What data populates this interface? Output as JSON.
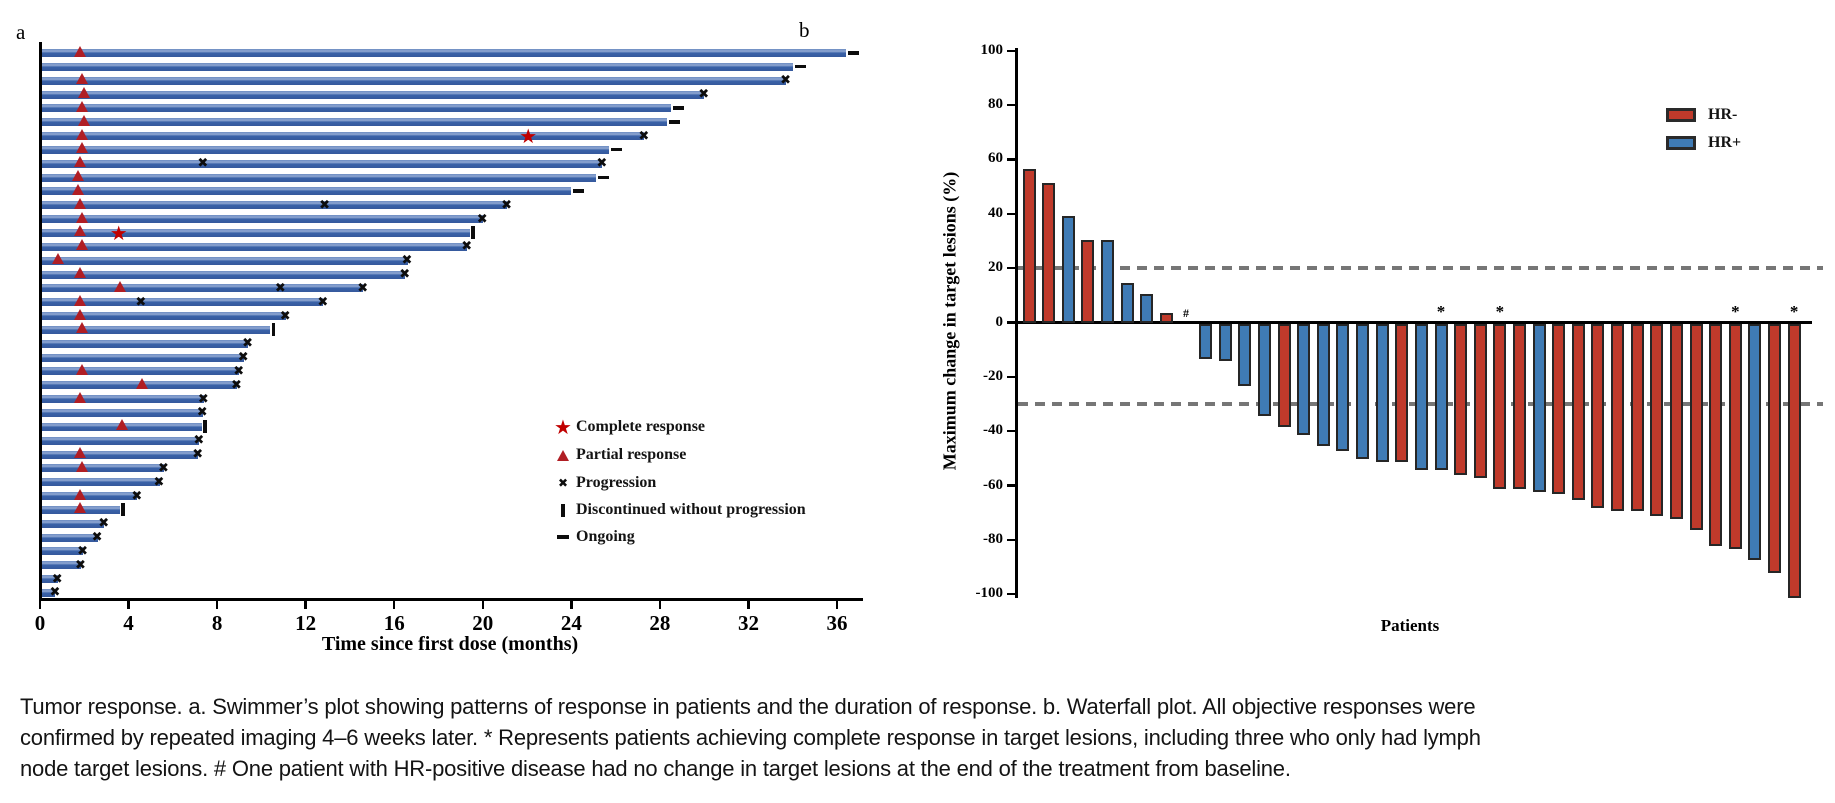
{
  "figure": {
    "panel_a_label": "a",
    "panel_b_label": "b"
  },
  "colors": {
    "swimmer_bar": "#3A62A8",
    "response_marker_red": "#B01E24",
    "complete_response_red": "#C00000",
    "progression_black": "#0D0D0D",
    "hr_negative_red": "#C03A2B",
    "hr_positive_blue": "#3F7BB5",
    "reference_dash_gray": "#767676",
    "axis_black": "#000000"
  },
  "caption": {
    "lines": [
      "Tumor response. a. Swimmer’s plot showing patterns of response in patients and the duration of response. b. Waterfall plot. All objective responses were",
      "confirmed by repeated imaging 4–6 weeks later. * Represents patients achieving complete response in target lesions, including three who only had lymph",
      "node target lesions. # One patient with HR-positive disease had no change in target lesions at the end of the treatment from baseline."
    ]
  },
  "chart_data": [
    {
      "type": "swimmer",
      "panel": "a",
      "xlabel": "Time since first dose (months)",
      "xticks": [
        0,
        4,
        8,
        12,
        16,
        20,
        24,
        28,
        32,
        36
      ],
      "xlim": [
        0,
        37.2
      ],
      "legend": [
        {
          "symbol": "star",
          "label": "Complete response"
        },
        {
          "symbol": "triangle",
          "label": "Partial response"
        },
        {
          "symbol": "x",
          "label": "Progression"
        },
        {
          "symbol": "vbar",
          "label": "Discontinued without progression"
        },
        {
          "symbol": "dash",
          "label": "Ongoing"
        }
      ],
      "end_types": {
        "ongoing": "dash beyond bar",
        "progression": "x at bar end",
        "discontinued": "vertical bar at end"
      },
      "patients": [
        {
          "duration": 36.4,
          "end": "ongoing",
          "partial_response": [
            1.8
          ]
        },
        {
          "duration": 34.0,
          "end": "ongoing"
        },
        {
          "duration": 33.7,
          "end": "progression",
          "partial_response": [
            1.9
          ]
        },
        {
          "duration": 30.0,
          "end": "progression",
          "partial_response": [
            2.0
          ]
        },
        {
          "duration": 28.5,
          "end": "ongoing",
          "partial_response": [
            1.9
          ]
        },
        {
          "duration": 28.3,
          "end": "ongoing",
          "partial_response": [
            2.0
          ]
        },
        {
          "duration": 27.3,
          "end": "progression",
          "partial_response": [
            1.9
          ],
          "complete_response": [
            22.1
          ]
        },
        {
          "duration": 25.7,
          "end": "ongoing",
          "partial_response": [
            1.9
          ]
        },
        {
          "duration": 25.4,
          "end": "progression",
          "partial_response": [
            1.8
          ],
          "progression_marks": [
            7.4
          ]
        },
        {
          "duration": 25.1,
          "end": "ongoing",
          "partial_response": [
            1.7
          ]
        },
        {
          "duration": 24.0,
          "end": "ongoing",
          "partial_response": [
            1.7
          ]
        },
        {
          "duration": 21.1,
          "end": "progression",
          "partial_response": [
            1.8
          ],
          "progression_marks": [
            12.9
          ]
        },
        {
          "duration": 20.0,
          "end": "progression",
          "partial_response": [
            1.9
          ]
        },
        {
          "duration": 19.4,
          "end": "discontinued",
          "partial_response": [
            1.8
          ],
          "complete_response": [
            3.6
          ]
        },
        {
          "duration": 19.3,
          "end": "progression",
          "partial_response": [
            1.9
          ]
        },
        {
          "duration": 16.6,
          "end": "progression",
          "partial_response": [
            0.8
          ]
        },
        {
          "duration": 16.5,
          "end": "progression",
          "partial_response": [
            1.8
          ]
        },
        {
          "duration": 14.6,
          "end": "progression",
          "partial_response": [
            3.6
          ],
          "progression_marks": [
            10.9
          ]
        },
        {
          "duration": 12.8,
          "end": "progression",
          "partial_response": [
            1.8
          ],
          "progression_marks": [
            4.6
          ]
        },
        {
          "duration": 11.1,
          "end": "progression",
          "partial_response": [
            1.8
          ]
        },
        {
          "duration": 10.4,
          "end": "discontinued",
          "partial_response": [
            1.9
          ]
        },
        {
          "duration": 9.4,
          "end": "progression"
        },
        {
          "duration": 9.2,
          "end": "progression"
        },
        {
          "duration": 9.0,
          "end": "progression",
          "partial_response": [
            1.9
          ]
        },
        {
          "duration": 8.9,
          "end": "progression",
          "partial_response": [
            4.6
          ]
        },
        {
          "duration": 7.4,
          "end": "progression",
          "partial_response": [
            1.8
          ]
        },
        {
          "duration": 7.35,
          "end": "progression"
        },
        {
          "duration": 7.3,
          "end": "discontinued",
          "partial_response": [
            3.7
          ]
        },
        {
          "duration": 7.2,
          "end": "progression"
        },
        {
          "duration": 7.15,
          "end": "progression",
          "partial_response": [
            1.8
          ]
        },
        {
          "duration": 5.6,
          "end": "progression",
          "partial_response": [
            1.9
          ]
        },
        {
          "duration": 5.4,
          "end": "progression"
        },
        {
          "duration": 4.4,
          "end": "progression",
          "partial_response": [
            1.8
          ]
        },
        {
          "duration": 3.6,
          "end": "discontinued",
          "partial_response": [
            1.8
          ]
        },
        {
          "duration": 2.9,
          "end": "progression"
        },
        {
          "duration": 2.6,
          "end": "progression"
        },
        {
          "duration": 1.95,
          "end": "progression"
        },
        {
          "duration": 1.85,
          "end": "progression"
        },
        {
          "duration": 0.8,
          "end": "progression"
        },
        {
          "duration": 0.7,
          "end": "progression"
        }
      ]
    },
    {
      "type": "waterfall",
      "panel": "b",
      "ylabel": "Maximum change in target lesions (%)",
      "xlabel": "Patients",
      "yticks": [
        100,
        80,
        60,
        40,
        20,
        0,
        -20,
        -40,
        -60,
        -80,
        -100
      ],
      "ylim": [
        -100,
        100
      ],
      "reference_lines": [
        20,
        -30
      ],
      "legend": [
        {
          "label": "HR-",
          "color": "#C03A2B"
        },
        {
          "label": "HR+",
          "color": "#3F7BB5"
        }
      ],
      "series_colors": {
        "HR-": "#C03A2B",
        "HR+": "#3F7BB5"
      },
      "patients": [
        {
          "value": 56,
          "group": "HR-"
        },
        {
          "value": 51,
          "group": "HR-"
        },
        {
          "value": 39,
          "group": "HR+"
        },
        {
          "value": 30,
          "group": "HR-"
        },
        {
          "value": 30,
          "group": "HR+"
        },
        {
          "value": 14,
          "group": "HR+"
        },
        {
          "value": 10,
          "group": "HR+"
        },
        {
          "value": 3,
          "group": "HR-"
        },
        {
          "value": 0,
          "group": "HR+",
          "annotation": "#"
        },
        {
          "value": -12,
          "group": "HR+"
        },
        {
          "value": -13,
          "group": "HR+"
        },
        {
          "value": -22,
          "group": "HR+"
        },
        {
          "value": -33,
          "group": "HR+"
        },
        {
          "value": -37,
          "group": "HR-"
        },
        {
          "value": -40,
          "group": "HR+"
        },
        {
          "value": -44,
          "group": "HR+"
        },
        {
          "value": -46,
          "group": "HR+"
        },
        {
          "value": -49,
          "group": "HR+"
        },
        {
          "value": -50,
          "group": "HR+"
        },
        {
          "value": -50,
          "group": "HR-"
        },
        {
          "value": -53,
          "group": "HR+"
        },
        {
          "value": -53,
          "group": "HR+",
          "annotation": "*"
        },
        {
          "value": -55,
          "group": "HR-"
        },
        {
          "value": -56,
          "group": "HR-"
        },
        {
          "value": -60,
          "group": "HR-",
          "annotation": "*"
        },
        {
          "value": -60,
          "group": "HR-"
        },
        {
          "value": -61,
          "group": "HR+"
        },
        {
          "value": -62,
          "group": "HR-"
        },
        {
          "value": -64,
          "group": "HR-"
        },
        {
          "value": -67,
          "group": "HR-"
        },
        {
          "value": -68,
          "group": "HR-"
        },
        {
          "value": -68,
          "group": "HR-"
        },
        {
          "value": -70,
          "group": "HR-"
        },
        {
          "value": -71,
          "group": "HR-"
        },
        {
          "value": -75,
          "group": "HR-"
        },
        {
          "value": -81,
          "group": "HR-"
        },
        {
          "value": -82,
          "group": "HR-",
          "annotation": "*"
        },
        {
          "value": -86,
          "group": "HR+"
        },
        {
          "value": -91,
          "group": "HR-"
        },
        {
          "value": -100,
          "group": "HR-",
          "annotation": "*"
        }
      ]
    }
  ]
}
